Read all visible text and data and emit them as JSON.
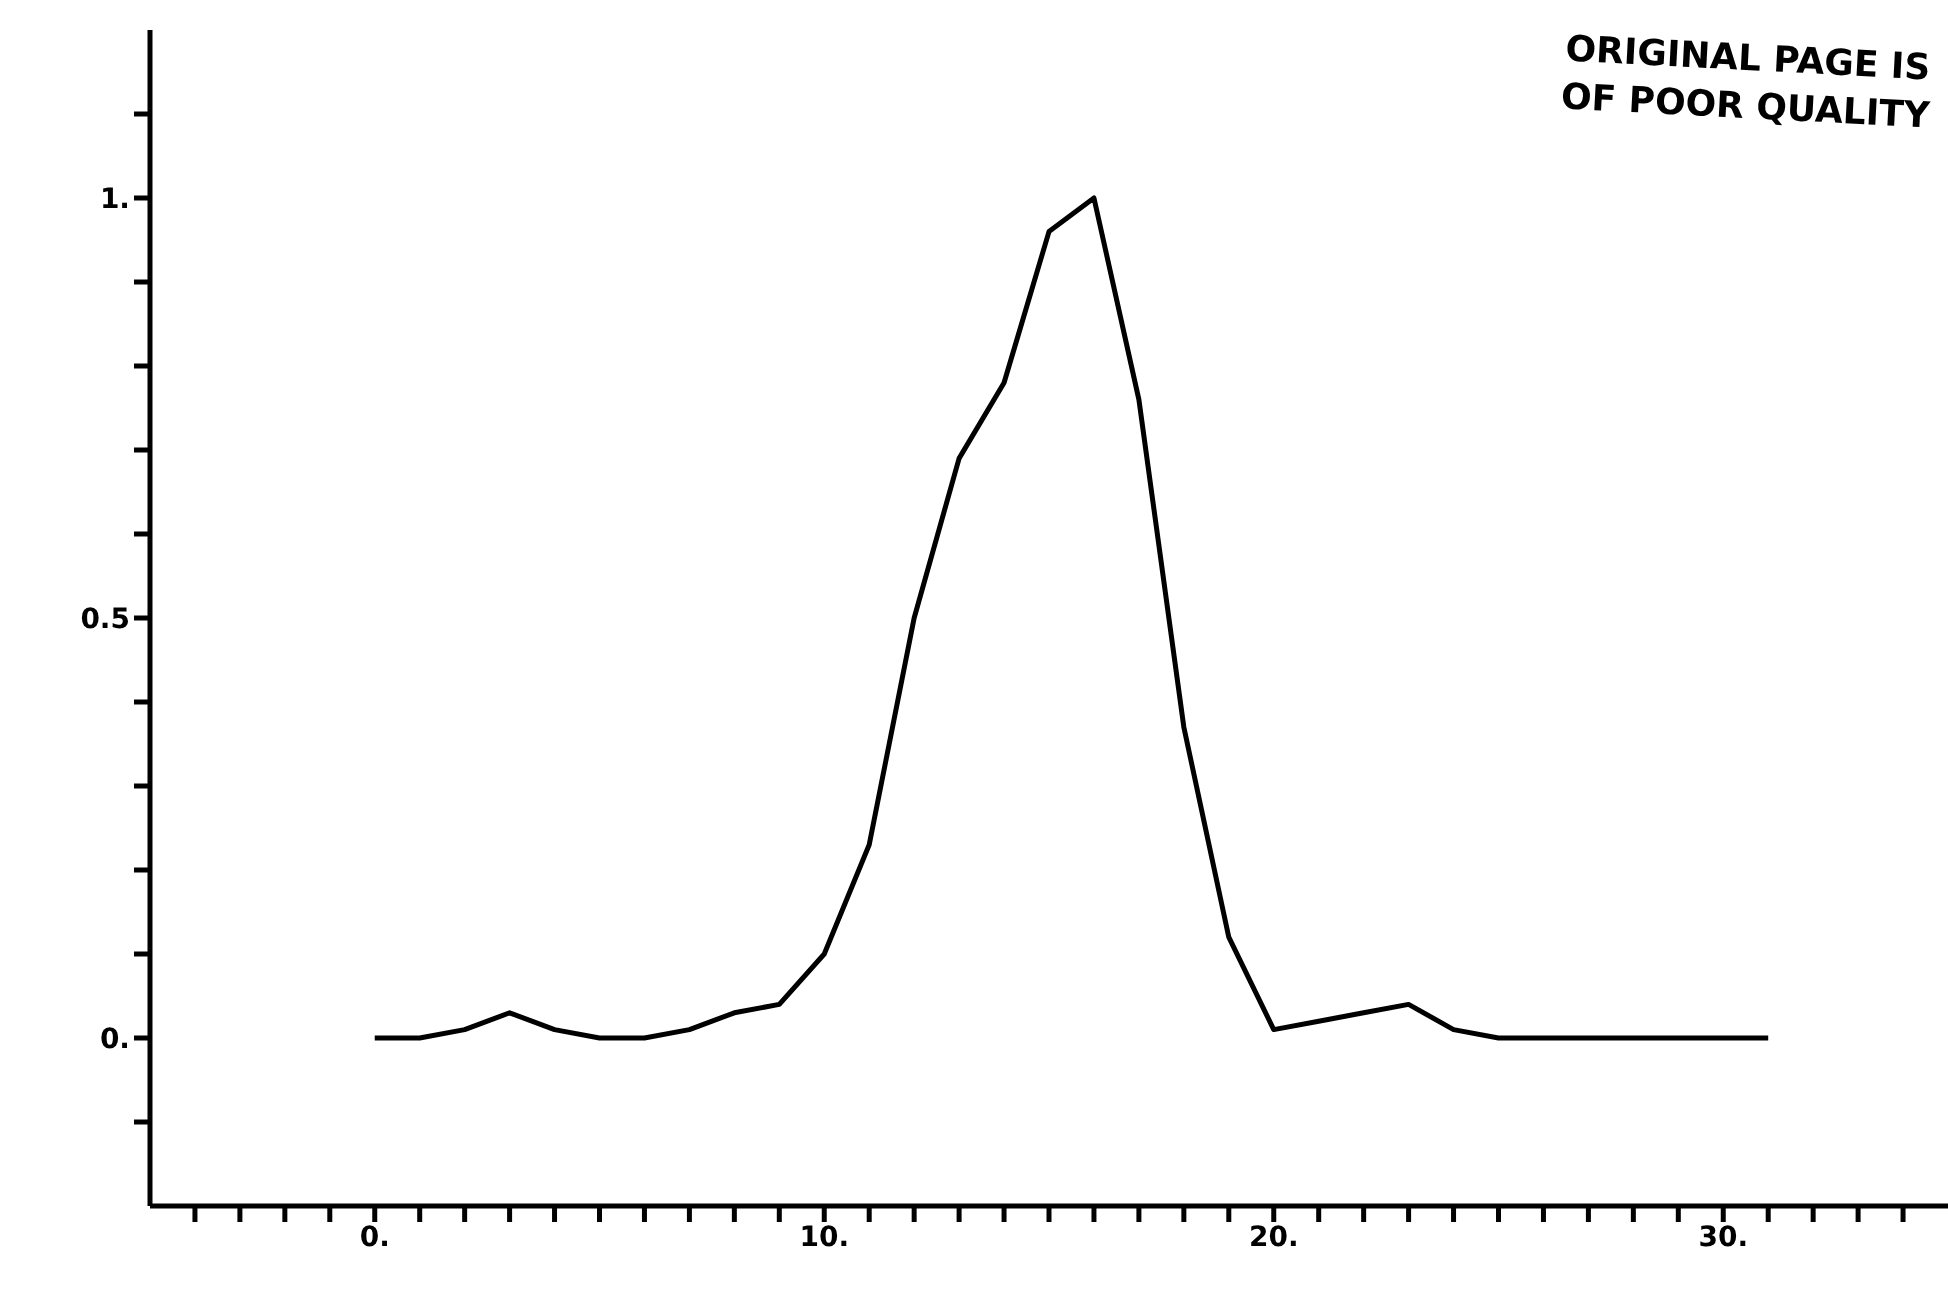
{
  "chart_data": {
    "type": "line",
    "x": [
      0,
      1,
      2,
      3,
      4,
      5,
      6,
      7,
      8,
      9,
      10,
      11,
      12,
      13,
      14,
      15,
      16,
      17,
      18,
      19,
      20,
      21,
      22,
      23,
      24,
      25,
      26,
      27,
      28,
      29,
      30,
      31
    ],
    "series": [
      {
        "color": "#000000",
        "values": [
          0,
          0,
          0.01,
          0.03,
          0.01,
          0,
          0,
          0.01,
          0.03,
          0.04,
          0.1,
          0.23,
          0.5,
          0.69,
          0.78,
          0.96,
          1.0,
          0.76,
          0.37,
          0.12,
          0.01,
          0.02,
          0.03,
          0.04,
          0.01,
          0,
          0,
          0,
          0,
          0,
          0,
          0
        ]
      }
    ],
    "xlim": [
      -5,
      35
    ],
    "xticks": [
      {
        "value": -4,
        "label": null
      },
      {
        "value": -3,
        "label": null
      },
      {
        "value": -2,
        "label": null
      },
      {
        "value": -1,
        "label": null
      },
      {
        "value": 0,
        "label": "0."
      },
      {
        "value": 1,
        "label": null
      },
      {
        "value": 2,
        "label": null
      },
      {
        "value": 3,
        "label": null
      },
      {
        "value": 4,
        "label": null
      },
      {
        "value": 5,
        "label": null
      },
      {
        "value": 6,
        "label": null
      },
      {
        "value": 7,
        "label": null
      },
      {
        "value": 8,
        "label": null
      },
      {
        "value": 9,
        "label": null
      },
      {
        "value": 10,
        "label": "10."
      },
      {
        "value": 11,
        "label": null
      },
      {
        "value": 12,
        "label": null
      },
      {
        "value": 13,
        "label": null
      },
      {
        "value": 14,
        "label": null
      },
      {
        "value": 15,
        "label": null
      },
      {
        "value": 16,
        "label": null
      },
      {
        "value": 17,
        "label": null
      },
      {
        "value": 18,
        "label": null
      },
      {
        "value": 19,
        "label": null
      },
      {
        "value": 20,
        "label": "20."
      },
      {
        "value": 21,
        "label": null
      },
      {
        "value": 22,
        "label": null
      },
      {
        "value": 23,
        "label": null
      },
      {
        "value": 24,
        "label": null
      },
      {
        "value": 25,
        "label": null
      },
      {
        "value": 26,
        "label": null
      },
      {
        "value": 27,
        "label": null
      },
      {
        "value": 28,
        "label": null
      },
      {
        "value": 29,
        "label": null
      },
      {
        "value": 30,
        "label": "30."
      },
      {
        "value": 31,
        "label": null
      },
      {
        "value": 32,
        "label": null
      },
      {
        "value": 33,
        "label": null
      },
      {
        "value": 34,
        "label": null
      }
    ],
    "ylim": [
      -0.2,
      1.2
    ],
    "yticks": [
      {
        "value": -0.1,
        "label": null
      },
      {
        "value": 0,
        "label": "0."
      },
      {
        "value": 0.1,
        "label": null
      },
      {
        "value": 0.2,
        "label": null
      },
      {
        "value": 0.3,
        "label": null
      },
      {
        "value": 0.4,
        "label": null
      },
      {
        "value": 0.5,
        "label": "0.5"
      },
      {
        "value": 0.6,
        "label": null
      },
      {
        "value": 0.7,
        "label": null
      },
      {
        "value": 0.8,
        "label": null
      },
      {
        "value": 0.9,
        "label": null
      },
      {
        "value": 1,
        "label": "1."
      },
      {
        "value": 1.1,
        "label": null
      }
    ],
    "marker": "none",
    "line_style": "solid",
    "grid": false,
    "annotations": [
      "ORIGINAL PAGE IS\nOF POOR QUALITY"
    ]
  }
}
